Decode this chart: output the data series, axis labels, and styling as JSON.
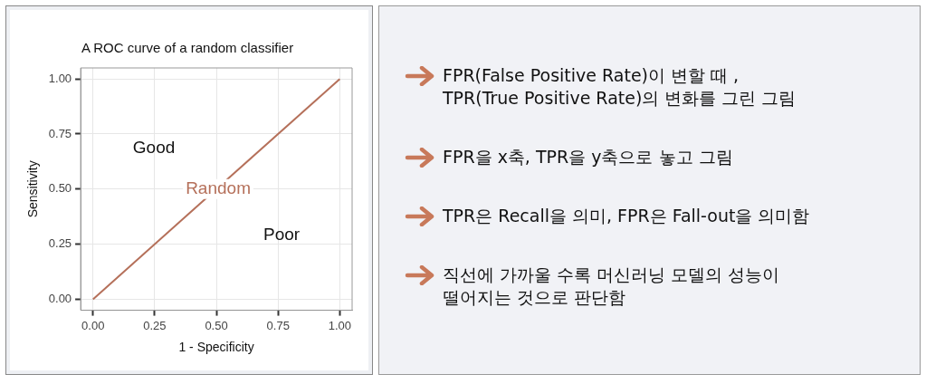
{
  "chart_data": [
    {
      "type": "line",
      "title": "A ROC curve of a random classifier",
      "xlabel": "1 - Specificity",
      "ylabel": "Sensitivity",
      "x": [
        0,
        1
      ],
      "series": [
        {
          "name": "Random",
          "color": "#b5705a",
          "values": [
            0,
            1
          ]
        }
      ],
      "xlim": [
        -0.05,
        1.05
      ],
      "ylim": [
        -0.05,
        1.05
      ],
      "xticks": [
        {
          "value": 0,
          "label": "0.00"
        },
        {
          "value": 0.25,
          "label": "0.25"
        },
        {
          "value": 0.5,
          "label": "0.50"
        },
        {
          "value": 0.75,
          "label": "0.75"
        },
        {
          "value": 1,
          "label": "1.00"
        }
      ],
      "yticks": [
        {
          "value": 0,
          "label": "0.00"
        },
        {
          "value": 0.25,
          "label": "0.25"
        },
        {
          "value": 0.5,
          "label": "0.50"
        },
        {
          "value": 0.75,
          "label": "0.75"
        },
        {
          "value": 1,
          "label": "1.00"
        }
      ],
      "annotations": [
        "Good",
        "Poor"
      ],
      "grid": true,
      "legend": false,
      "marker": "none",
      "line_style": "solid"
    },
    {
      "type": "other",
      "annotations": [
        "FPR(False Positive Rate)이 변할 때 ,\nTPR(True Positive Rate)의 변화를 그린 그림",
        "FPR을 x축, TPR을 y축으로 놓고 그림",
        "TPR은 Recall을 의미, FPR은 Fall-out을 의미함",
        "직선에 가까울 수록 머신러닝 모델의 성능이\n떨어지는 것으로 판단함"
      ]
    }
  ]
}
